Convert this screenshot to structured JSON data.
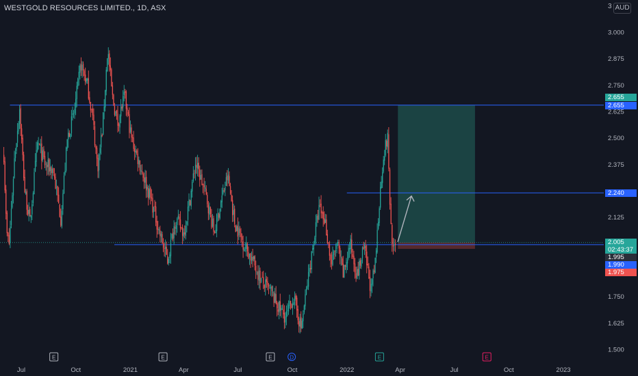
{
  "header": {
    "symbol_title": "WESTGOLD RESOURCES LIMITED., 1D, ASX",
    "currency": "AUD",
    "top_axis_label": "3"
  },
  "colors": {
    "background": "#131722",
    "up_candle": "#26a69a",
    "down_candle": "#ef5350",
    "level_line": "#2962ff",
    "profit_zone": "#1e5550",
    "loss_zone": "#5a2a2e",
    "arrow": "#b2b5be"
  },
  "price_tags": [
    {
      "label": "2.655",
      "color": "#26a69a"
    },
    {
      "label": "2.655",
      "color": "#2962ff"
    },
    {
      "label": "2.240",
      "color": "#2962ff"
    },
    {
      "label": "2.005",
      "color": "#26a69a"
    },
    {
      "label": "02:43:37",
      "color": "#26a69a"
    },
    {
      "label": "1.995",
      "color": "#2a2e39"
    },
    {
      "label": "1.990",
      "color": "#2962ff"
    },
    {
      "label": "1.975",
      "color": "#ef5350"
    }
  ],
  "event_markers": [
    {
      "icon": "earnings-icon",
      "glyph": "E",
      "color": "#b2b5be"
    },
    {
      "icon": "earnings-icon",
      "glyph": "E",
      "color": "#b2b5be"
    },
    {
      "icon": "earnings-icon",
      "glyph": "E",
      "color": "#b2b5be"
    },
    {
      "icon": "dividend-icon",
      "glyph": "D",
      "color": "#2962ff"
    },
    {
      "icon": "earnings-icon",
      "glyph": "E",
      "color": "#26a69a"
    },
    {
      "icon": "earnings-icon",
      "glyph": "E",
      "color": "#e91e63"
    }
  ],
  "chart_data": {
    "type": "candlestick",
    "title": "WESTGOLD RESOURCES LIMITED., 1D, ASX",
    "ylim": [
      1.5,
      3.0
    ],
    "yticks": [
      "3.000",
      "2.875",
      "2.750",
      "2.625",
      "2.500",
      "2.375",
      "2.125",
      "1.750",
      "1.625",
      "1.500"
    ],
    "xticks": [
      "Jul",
      "Oct",
      "2021",
      "Apr",
      "Jul",
      "Oct",
      "2022",
      "Apr",
      "Jul",
      "Oct",
      "2023"
    ],
    "horizontal_levels": [
      2.655,
      2.24,
      1.995
    ],
    "position": {
      "type": "long",
      "entry": 2.005,
      "target": 2.655,
      "stop": 1.975
    },
    "last_price": 2.005,
    "countdown": "02:43:37",
    "series": [
      {
        "segments": [
          {
            "start": "2020-06-01",
            "end": "2020-06-10",
            "price_path": [
              2.42,
              2.05,
              2.0
            ]
          },
          {
            "start": "2020-06-10",
            "end": "2020-07-15",
            "price_path": [
              2.0,
              2.4,
              2.64,
              2.25,
              2.1
            ]
          },
          {
            "start": "2020-07-15",
            "end": "2020-09-05",
            "price_path": [
              2.1,
              2.48,
              2.37,
              2.35,
              2.12
            ]
          },
          {
            "start": "2020-09-05",
            "end": "2020-10-20",
            "price_path": [
              2.12,
              2.5,
              2.62,
              2.85,
              2.75
            ]
          },
          {
            "start": "2020-10-20",
            "end": "2020-12-10",
            "price_path": [
              2.75,
              2.6,
              2.36,
              2.55,
              2.92,
              2.68,
              2.57
            ]
          },
          {
            "start": "2020-12-10",
            "end": "2021-02-05",
            "price_path": [
              2.57,
              2.7,
              2.5,
              2.4,
              2.3,
              2.2
            ]
          },
          {
            "start": "2021-02-05",
            "end": "2021-03-31",
            "price_path": [
              2.2,
              2.05,
              1.92,
              2.12,
              2.05
            ]
          },
          {
            "start": "2021-03-31",
            "end": "2021-05-10",
            "price_path": [
              2.05,
              2.2,
              2.38,
              2.3,
              2.2
            ]
          },
          {
            "start": "2021-05-10",
            "end": "2021-06-25",
            "price_path": [
              2.2,
              2.05,
              2.2,
              2.32,
              2.1
            ]
          },
          {
            "start": "2021-06-25",
            "end": "2021-08-25",
            "price_path": [
              2.1,
              2.0,
              1.92,
              1.82,
              1.77
            ]
          },
          {
            "start": "2021-08-25",
            "end": "2021-10-15",
            "price_path": [
              1.77,
              1.7,
              1.65,
              1.75,
              1.6
            ]
          },
          {
            "start": "2021-10-15",
            "end": "2021-11-25",
            "price_path": [
              1.6,
              1.8,
              2.0,
              2.17,
              2.1
            ]
          },
          {
            "start": "2021-11-25",
            "end": "2021-12-25",
            "price_path": [
              2.1,
              1.9,
              2.0,
              1.85
            ]
          },
          {
            "start": "2021-12-25",
            "end": "2022-02-10",
            "price_path": [
              1.85,
              2.0,
              1.85,
              1.98,
              1.78
            ]
          },
          {
            "start": "2022-02-10",
            "end": "2022-03-10",
            "price_path": [
              1.78,
              1.9,
              2.2,
              2.42,
              2.5
            ]
          },
          {
            "start": "2022-03-10",
            "end": "2022-03-25",
            "price_path": [
              2.5,
              2.1,
              1.95,
              2.005
            ]
          }
        ]
      }
    ]
  }
}
